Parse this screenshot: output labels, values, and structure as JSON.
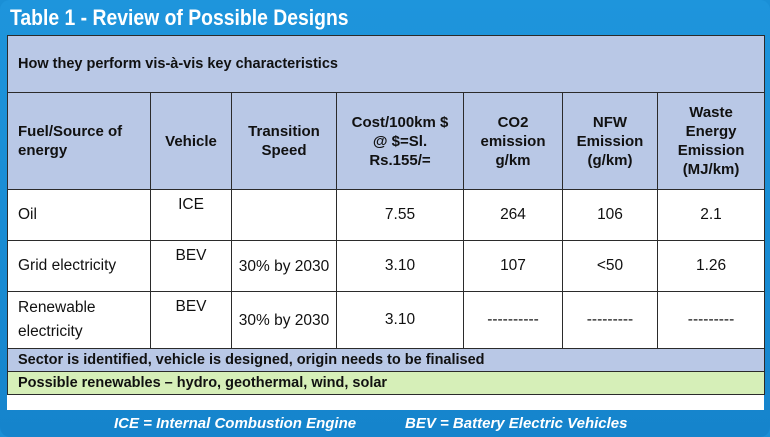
{
  "title": "Table 1 - Review of Possible Designs",
  "subtitle": "How they perform vis-à-vis key characteristics",
  "headers": {
    "fuel": "Fuel/Source of energy",
    "vehicle": "Vehicle",
    "speed": "Transition Speed",
    "cost": "Cost/100km $ @ $=Sl. Rs.155/=",
    "co2": "CO2 emission g/km",
    "nfw": "NFW Emission (g/km)",
    "waste": "Waste Energy Emission (MJ/km)"
  },
  "rows": [
    {
      "fuel": "Oil",
      "vehicle": "ICE",
      "speed": "",
      "cost": "7.55",
      "co2": "264",
      "nfw": "106",
      "waste": "2.1"
    },
    {
      "fuel": "Grid electricity",
      "vehicle": "BEV",
      "speed": "30% by 2030",
      "cost": "3.10",
      "co2": "107",
      "nfw": "<50",
      "waste": "1.26"
    },
    {
      "fuel": "Renewable electricity",
      "vehicle": "BEV",
      "speed": "30% by 2030",
      "cost": "3.10",
      "co2": "----------",
      "nfw": "---------",
      "waste": "---------"
    }
  ],
  "notes": {
    "sector": "Sector is identified, vehicle is designed, origin needs to be finalised",
    "renewables": "Possible renewables – hydro, geothermal, wind, solar"
  },
  "footer": {
    "ice": "ICE = Internal Combustion Engine",
    "bev": "BEV = Battery Electric Vehicles"
  },
  "colors": {
    "frame": "#1a8fd6",
    "header_fill": "#b9c8e6",
    "renewables_fill": "#d6efb8"
  }
}
